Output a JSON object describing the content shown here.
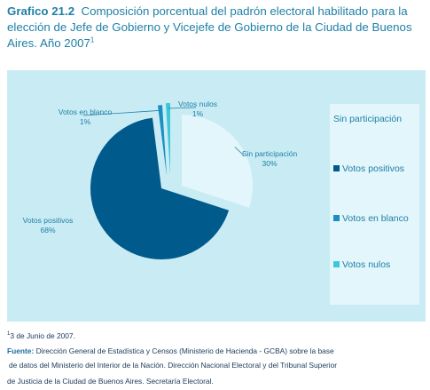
{
  "title": {
    "number": "Grafico 21.2",
    "text": "Composición porcentual del padrón electoral habilitado para la elección de Jefe de Gobierno y Vicejefe de Gobierno de la Ciudad de Buenos Aires. Año 2007",
    "footnote_ref": "1"
  },
  "chart_data": {
    "type": "pie",
    "title": "Composición porcentual del padrón electoral habilitado para la elección de Jefe de Gobierno y Vicejefe de Gobierno de la Ciudad de Buenos Aires. Año 2007",
    "categories": [
      "Sin participación",
      "Votos positivos",
      "Votos en blanco",
      "Votos nulos"
    ],
    "values": [
      30,
      68,
      1,
      1
    ],
    "value_labels": [
      "30%",
      "68%",
      "1%",
      "1%"
    ],
    "colors": [
      "#e2f6fb",
      "#005b8c",
      "#1a8fc4",
      "#3cc8d8"
    ],
    "exploded": [
      "Sin participación",
      "Votos en blanco",
      "Votos nulos"
    ],
    "legend_position": "right",
    "legend": [
      "Sin participación",
      "Votos positivos",
      "Votos en blanco",
      "Votos nulos"
    ]
  },
  "footnotes": {
    "note_mark": "1",
    "note_text": "3 de Junio de 2007.",
    "source_label": "Fuente:",
    "source_line1": " Dirección General de Estadística y Censos (Ministerio de Hacienda - GCBA) sobre la base",
    "source_line2": "de datos del Ministerio del Interior de la Nación. Dirección Nacional Electoral y del Tribunal Superior",
    "source_line3": "de Justicia de la Ciudad de Buenos Aires. Secretaría Electoral."
  },
  "colors": {
    "title": "#1f7fa6",
    "panel_bg": "#c9ecf4",
    "legend_bg": "#e2f6fb"
  }
}
